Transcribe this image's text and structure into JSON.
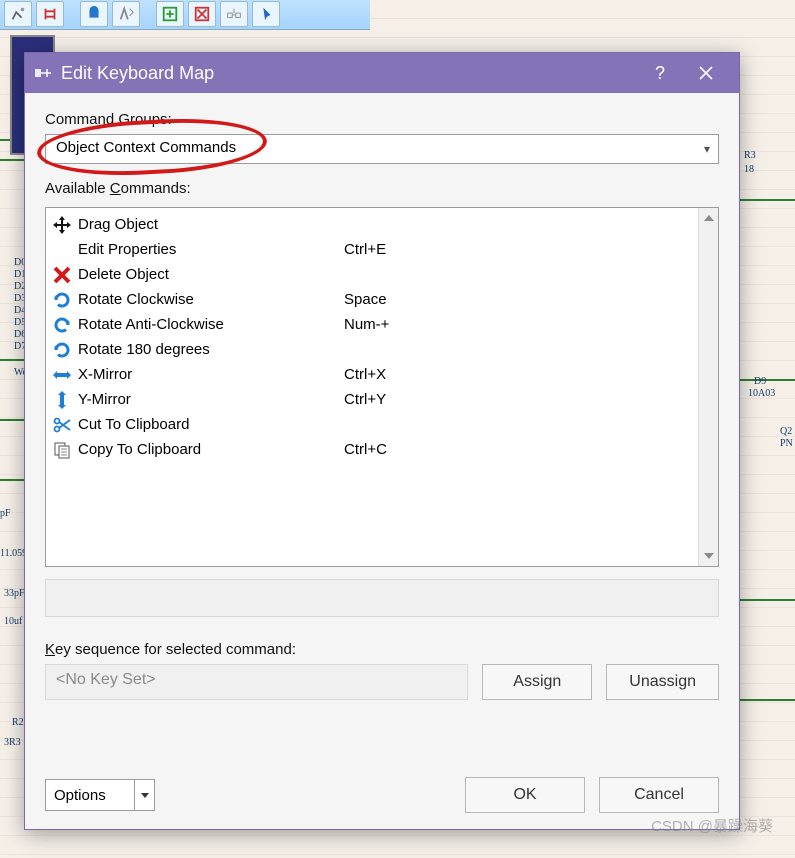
{
  "dialog": {
    "title": "Edit Keyboard Map",
    "titlebar_color": "#8573b8",
    "labels": {
      "command_groups": "Command Groups:",
      "available_commands": "Available Commands:",
      "available_underline": "C",
      "key_sequence": "Key sequence for selected command:",
      "key_underline": "K"
    },
    "combo_value": "Object Context Commands",
    "commands": [
      {
        "icon": "move-icon",
        "name": "Drag Object",
        "shortcut": ""
      },
      {
        "icon": "blank-icon",
        "name": "Edit Properties",
        "shortcut": "Ctrl+E"
      },
      {
        "icon": "delete-x-icon",
        "name": "Delete Object",
        "shortcut": ""
      },
      {
        "icon": "rotate-cw-icon",
        "name": "Rotate Clockwise",
        "shortcut": "Space"
      },
      {
        "icon": "rotate-acw-icon",
        "name": "Rotate Anti-Clockwise",
        "shortcut": "Num-+"
      },
      {
        "icon": "rotate-cw-icon",
        "name": "Rotate 180 degrees",
        "shortcut": ""
      },
      {
        "icon": "hmirror-icon",
        "name": "X-Mirror",
        "shortcut": "Ctrl+X"
      },
      {
        "icon": "vmirror-icon",
        "name": "Y-Mirror",
        "shortcut": "Ctrl+Y"
      },
      {
        "icon": "scissors-icon",
        "name": "Cut To Clipboard",
        "shortcut": ""
      },
      {
        "icon": "copy-icon",
        "name": "Copy To Clipboard",
        "shortcut": "Ctrl+C"
      }
    ],
    "key_placeholder": "<No Key Set>",
    "buttons": {
      "assign": "Assign",
      "unassign": "Unassign",
      "options": "Options",
      "ok": "OK",
      "cancel": "Cancel"
    }
  },
  "background": {
    "pins": [
      "D0",
      "D1",
      "D2",
      "D3",
      "D4",
      "D5",
      "D6",
      "D7"
    ],
    "wei_label": "Wei",
    "components": {
      "r3": "R3",
      "r3_sub": "18",
      "d9": "D9",
      "d9_sub": "10A03",
      "q2": "Q2",
      "q2_sub": "PN",
      "r2": "R2",
      "r2_val": "3R3",
      "c_33pf": "33pF",
      "c_10uf": "10uf",
      "xtal": "11.0592MH",
      "pf": "pF"
    },
    "watermark": "CSDN @暴躁海葵"
  }
}
